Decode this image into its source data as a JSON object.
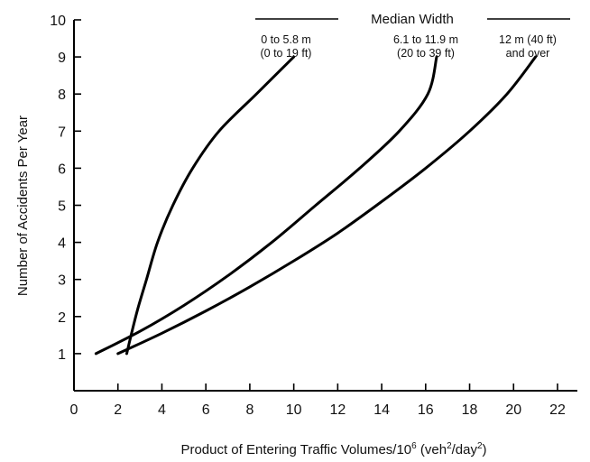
{
  "chart_data": {
    "type": "line",
    "title": "",
    "xlabel": {
      "base": "Product of Entering Traffic Volumes/10",
      "exp1": "6",
      "mid": " (veh",
      "exp2": "2",
      "mid2": "/day",
      "exp3": "2",
      "end": ")"
    },
    "ylabel": "Number of Accidents Per Year",
    "xlim": [
      0,
      23
    ],
    "ylim": [
      0,
      10
    ],
    "xticks": [
      0,
      2,
      4,
      6,
      8,
      10,
      12,
      14,
      16,
      18,
      20,
      22
    ],
    "yticks": [
      1,
      2,
      3,
      4,
      5,
      6,
      7,
      8,
      9,
      10
    ],
    "grid": false,
    "legend_title": "Median Width",
    "series": [
      {
        "name_line1": "0 to 5.8 m",
        "name_line2": "(0 to 19 ft)",
        "points": [
          [
            2.4,
            1.0
          ],
          [
            2.6,
            1.5
          ],
          [
            2.9,
            2.2
          ],
          [
            3.3,
            3.0
          ],
          [
            3.8,
            4.0
          ],
          [
            4.5,
            5.0
          ],
          [
            5.4,
            6.0
          ],
          [
            6.6,
            7.0
          ],
          [
            8.3,
            8.0
          ],
          [
            10.0,
            9.0
          ]
        ]
      },
      {
        "name_line1": "6.1 to 11.9 m",
        "name_line2": "(20 to 39 ft)",
        "points": [
          [
            1.0,
            1.0
          ],
          [
            3.0,
            1.6
          ],
          [
            5.0,
            2.3
          ],
          [
            7.0,
            3.1
          ],
          [
            9.0,
            4.0
          ],
          [
            11.0,
            5.0
          ],
          [
            13.0,
            6.0
          ],
          [
            14.8,
            7.0
          ],
          [
            16.1,
            8.0
          ],
          [
            16.5,
            9.0
          ]
        ]
      },
      {
        "name_line1": "12 m (40 ft)",
        "name_line2": "and over",
        "points": [
          [
            2.0,
            1.0
          ],
          [
            4.0,
            1.55
          ],
          [
            6.0,
            2.15
          ],
          [
            8.0,
            2.8
          ],
          [
            10.0,
            3.5
          ],
          [
            12.0,
            4.25
          ],
          [
            14.0,
            5.1
          ],
          [
            16.0,
            6.0
          ],
          [
            18.0,
            7.0
          ],
          [
            19.7,
            8.0
          ],
          [
            21.0,
            9.0
          ]
        ]
      }
    ]
  }
}
